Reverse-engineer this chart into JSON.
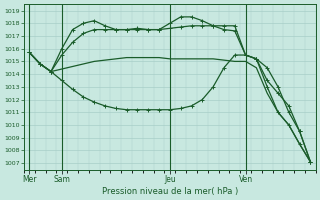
{
  "bg_color": "#c8e8e0",
  "grid_color": "#a8cfc8",
  "line_color": "#1a5c2a",
  "title": "Pression niveau de la mer( hPa )",
  "ylim": [
    1006.5,
    1019.5
  ],
  "yticks": [
    1007,
    1008,
    1009,
    1010,
    1011,
    1012,
    1013,
    1014,
    1015,
    1016,
    1017,
    1018,
    1019
  ],
  "day_labels": [
    "Mer",
    "Sam",
    "Jeu",
    "Ven"
  ],
  "day_positions": [
    0,
    3,
    13,
    20
  ],
  "n_points": 27,
  "series1": [
    1015.7,
    1014.8,
    1014.2,
    1014.4,
    1014.6,
    1014.8,
    1015.0,
    1015.1,
    1015.2,
    1015.3,
    1015.3,
    1015.3,
    1015.3,
    1015.2,
    1015.2,
    1015.2,
    1015.2,
    1015.2,
    1015.1,
    1015.0,
    1015.0,
    1014.5,
    1012.5,
    1011.0,
    1010.0,
    1008.5,
    1007.1
  ],
  "series2": [
    1015.7,
    1014.8,
    1014.2,
    1016.0,
    1017.5,
    1018.0,
    1018.2,
    1017.8,
    1017.5,
    1017.5,
    1017.6,
    1017.5,
    1017.5,
    1018.0,
    1018.5,
    1018.5,
    1018.2,
    1017.8,
    1017.5,
    1017.4,
    1015.5,
    1015.2,
    1014.5,
    1013.0,
    1011.0,
    1009.5,
    1007.1
  ],
  "series3": [
    1015.7,
    1014.8,
    1014.2,
    1015.5,
    1016.5,
    1017.2,
    1017.5,
    1017.5,
    1017.5,
    1017.5,
    1017.5,
    1017.5,
    1017.5,
    1017.6,
    1017.7,
    1017.8,
    1017.8,
    1017.8,
    1017.8,
    1017.8,
    1015.5,
    1015.2,
    1013.5,
    1012.5,
    1011.5,
    1009.5,
    1007.1
  ],
  "series4": [
    1015.7,
    1014.8,
    1014.2,
    1013.5,
    1012.8,
    1012.2,
    1011.8,
    1011.5,
    1011.3,
    1011.2,
    1011.2,
    1011.2,
    1011.2,
    1011.2,
    1011.3,
    1011.5,
    1012.0,
    1013.0,
    1014.5,
    1015.5,
    1015.5,
    1015.2,
    1013.0,
    1011.0,
    1010.0,
    1008.5,
    1007.1
  ]
}
